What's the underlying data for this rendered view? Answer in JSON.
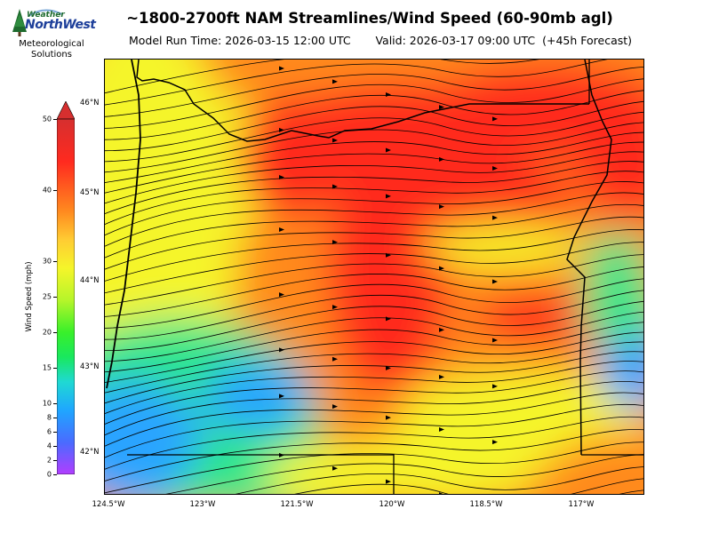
{
  "logo": {
    "word1": "Weather",
    "word2": "NorthWest",
    "org_line1": "Meteorological",
    "org_line2": "Solutions"
  },
  "title": "~1800-2700ft NAM Streamlines/Wind Speed (60-90mb agl)",
  "model_run": "Model Run Time: 2026-03-15 12:00 UTC",
  "valid": "Valid: 2026-03-17 09:00 UTC  (+45h Forecast)",
  "colorbar": {
    "label": "Wind Speed (mph)",
    "ticks": [
      "0",
      "2",
      "4",
      "6",
      "8",
      "10",
      "15",
      "20",
      "25",
      "30",
      "40",
      "50"
    ],
    "colors": [
      "#b23dff",
      "#4a6bff",
      "#1fa6ff",
      "#1fd9d3",
      "#19e85e",
      "#39f02a",
      "#b6f52a",
      "#f5f52a",
      "#ffcc33",
      "#ff8a1f",
      "#ff2a1f",
      "#d62f2f"
    ]
  },
  "map": {
    "lat_labels": [
      "46°N",
      "45°N",
      "44°N",
      "43°N",
      "42°N"
    ],
    "lon_labels": [
      "124.5°W",
      "123°W",
      "121.5°W",
      "120°W",
      "118.5°W",
      "117°W"
    ],
    "colors": {
      "strong": "#ff2a1f",
      "moderate": "#ff8a1f",
      "light": "#f5f52a",
      "weak": "#2ee68a",
      "calm": "#2aa4ff"
    }
  }
}
